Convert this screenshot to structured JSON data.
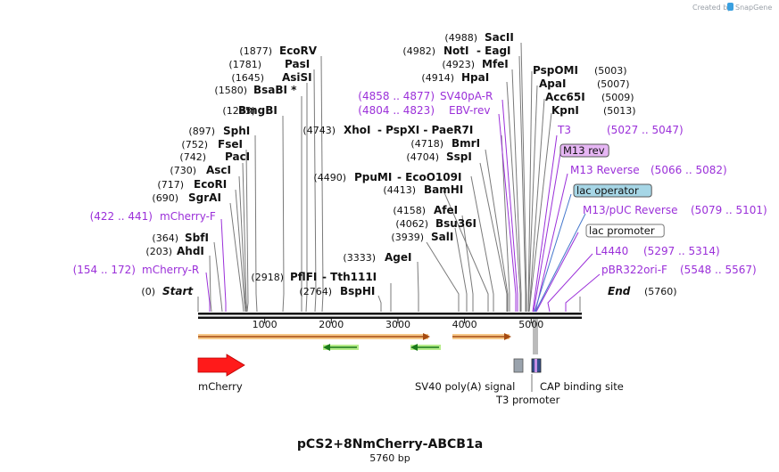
{
  "credit": "Created by",
  "credit_brand": "SnapGene",
  "title": "pCS2+8NmCherry-ABCB1a",
  "subtitle": "5760 bp",
  "total_bp": 5760,
  "ticks": [
    {
      "pos": 1000,
      "label": "1000"
    },
    {
      "pos": 2000,
      "label": "2000"
    },
    {
      "pos": 3000,
      "label": "3000"
    },
    {
      "pos": 4000,
      "label": "4000"
    },
    {
      "pos": 5000,
      "label": "5000"
    }
  ],
  "sites_left": [
    {
      "pos": "(1877)",
      "name": "EcoRV",
      "bp": 1877
    },
    {
      "pos": "(1781)",
      "name": "PasI",
      "bp": 1781
    },
    {
      "pos": "(1645)",
      "name": "AsiSI",
      "bp": 1645
    },
    {
      "pos": "(1580)",
      "name": "BsaBI *",
      "bp": 1580
    },
    {
      "pos": "(1295)",
      "name": "BmgBI",
      "bp": 1295
    },
    {
      "pos": "(897)",
      "name": "SphI",
      "bp": 897
    },
    {
      "pos": "(752)",
      "name": "FseI",
      "bp": 752
    },
    {
      "pos": "(742)",
      "name": "PacI",
      "bp": 742
    },
    {
      "pos": "(730)",
      "name": "AscI",
      "bp": 730
    },
    {
      "pos": "(717)",
      "name": "EcoRI",
      "bp": 717
    },
    {
      "pos": "(690)",
      "name": "SgrAI",
      "bp": 690
    },
    {
      "pos": "(364)",
      "name": "SbfI",
      "bp": 364
    },
    {
      "pos": "(203)",
      "name": "AhdI",
      "bp": 203
    },
    {
      "pos": "(0)",
      "name": "Start",
      "bp": 0
    }
  ],
  "sites_middle": [
    {
      "pos": "(4988)",
      "name": "SacII",
      "bp": 4988
    },
    {
      "pos": "(4982)",
      "name": "NotI",
      "extra": "-  EagI",
      "bp": 4982
    },
    {
      "pos": "(4923)",
      "name": "MfeI",
      "bp": 4923
    },
    {
      "pos": "(4914)",
      "name": "HpaI",
      "bp": 4914
    },
    {
      "pos": "(4743)",
      "name": "XhoI",
      "extra": "-  PspXI  -  PaeR7I",
      "bp": 4743
    },
    {
      "pos": "(4718)",
      "name": "BmrI",
      "bp": 4718
    },
    {
      "pos": "(4704)",
      "name": "SspI",
      "bp": 4704
    },
    {
      "pos": "(4490)",
      "name": "PpuMI",
      "extra": "-  EcoO109I",
      "bp": 4490
    },
    {
      "pos": "(4413)",
      "name": "BamHI",
      "bp": 4413
    },
    {
      "pos": "(4158)",
      "name": "AfeI",
      "bp": 4158
    },
    {
      "pos": "(4062)",
      "name": "Bsu36I",
      "bp": 4062
    },
    {
      "pos": "(3939)",
      "name": "SalI",
      "bp": 3939
    },
    {
      "pos": "(3333)",
      "name": "AgeI",
      "bp": 3333
    },
    {
      "pos": "(2918)",
      "name": "PflFI",
      "extra": "-  Tth111I",
      "bp": 2918
    },
    {
      "pos": "(2764)",
      "name": "BspHI",
      "bp": 2764
    }
  ],
  "sites_right": [
    {
      "name": "PspOMI",
      "pos": "(5003)",
      "bp": 5003
    },
    {
      "name": "ApaI",
      "pos": "(5007)",
      "bp": 5007
    },
    {
      "name": "Acc65I",
      "pos": "(5009)",
      "bp": 5009
    },
    {
      "name": "KpnI",
      "pos": "(5013)",
      "bp": 5013
    },
    {
      "name": "End",
      "pos": "(5760)",
      "bp": 5760
    }
  ],
  "primers_left": [
    {
      "range": "(4858 .. 4877)",
      "name": "SV40pA-R"
    },
    {
      "range": "(4804 .. 4823)",
      "name": "EBV-rev"
    },
    {
      "range": "(422 .. 441)",
      "name": "mCherry-F"
    },
    {
      "range": "(154 .. 172)",
      "name": "mCherry-R"
    }
  ],
  "primers_right": [
    {
      "name": "T3",
      "range": "(5027 .. 5047)"
    },
    {
      "name": "M13 rev",
      "range": ""
    },
    {
      "name": "M13 Reverse",
      "range": "(5066 .. 5082)"
    },
    {
      "name": "lac operator",
      "range": ""
    },
    {
      "name": "M13/pUC Reverse",
      "range": "(5079 .. 5101)"
    },
    {
      "name": "lac promoter",
      "range": ""
    },
    {
      "name": "L4440",
      "range": "(5297 .. 5314)"
    },
    {
      "name": "pBR322ori-F",
      "range": "(5548 .. 5567)"
    }
  ],
  "features": [
    {
      "name": "mCherry"
    },
    {
      "name": "SV40 poly(A) signal"
    },
    {
      "name": "CAP binding site"
    },
    {
      "name": "T3 promoter"
    }
  ]
}
